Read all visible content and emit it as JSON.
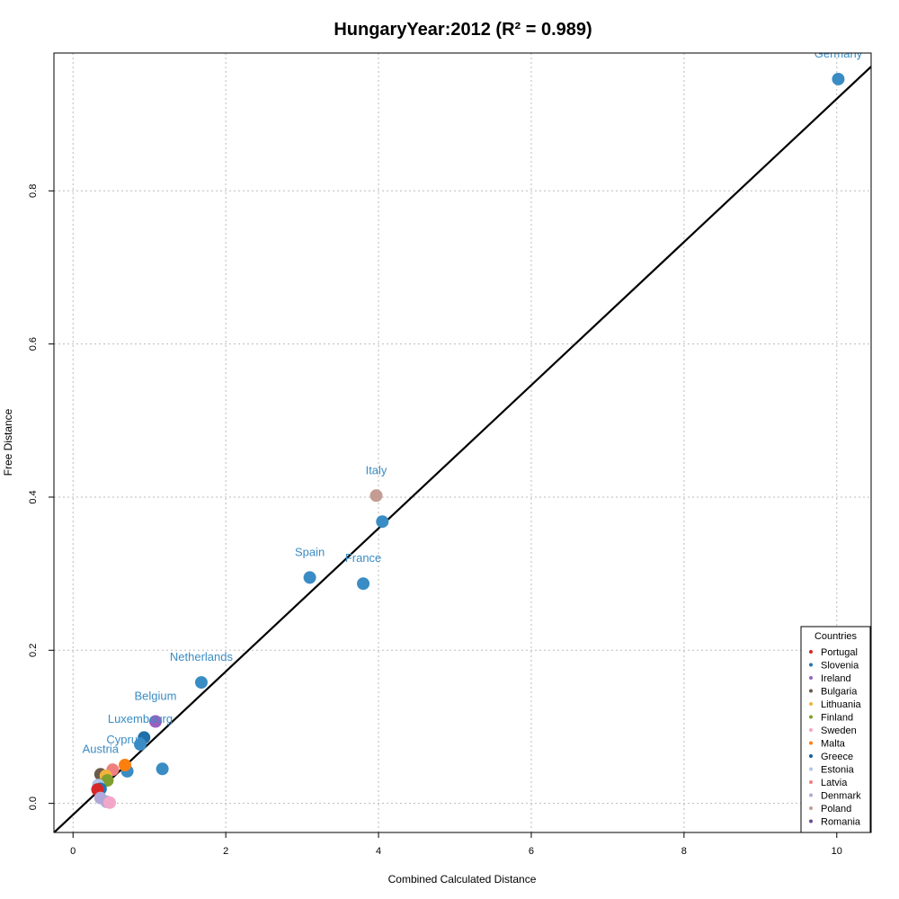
{
  "chart_data": {
    "type": "scatter",
    "title": "HungaryYear:2012 (R² = 0.989)",
    "xlabel": "Combined Calculated Distance",
    "ylabel": "Free Distance",
    "xlim": [
      -0.25,
      10.45
    ],
    "ylim": [
      -0.038,
      0.98
    ],
    "x_ticks": [
      0,
      2,
      4,
      6,
      8,
      10
    ],
    "y_ticks": [
      0.0,
      0.2,
      0.4,
      0.6,
      0.8
    ],
    "x_tick_labels": [
      "0",
      "2",
      "4",
      "6",
      "8",
      "10"
    ],
    "y_tick_labels": [
      "0.0",
      "0.2",
      "0.4",
      "0.6",
      "0.8"
    ],
    "grid": true,
    "fit_line": {
      "slope": 0.0935,
      "intercept": -0.0148
    },
    "legend": {
      "title": "Countries",
      "placement": "bottom-right",
      "entries": [
        {
          "name": "Portugal",
          "color": "#d62728"
        },
        {
          "name": "Slovenia",
          "color": "#1f77b4"
        },
        {
          "name": "Ireland",
          "color": "#9467bd"
        },
        {
          "name": "Bulgaria",
          "color": "#6b5b4b"
        },
        {
          "name": "Lithuania",
          "color": "#f2b33d"
        },
        {
          "name": "Finland",
          "color": "#7f9f2f"
        },
        {
          "name": "Sweden",
          "color": "#f4a6c8"
        },
        {
          "name": "Malta",
          "color": "#ff7f0e"
        },
        {
          "name": "Greece",
          "color": "#1a5f96"
        },
        {
          "name": "Estonia",
          "color": "#aec7e8"
        },
        {
          "name": "Latvia",
          "color": "#f08080"
        },
        {
          "name": "Denmark",
          "color": "#b0a8d8"
        },
        {
          "name": "Poland",
          "color": "#c49c94"
        },
        {
          "name": "Romania",
          "color": "#6a4c93"
        }
      ]
    },
    "points": [
      {
        "x": 10.02,
        "y": 0.946,
        "color": "#3a8cc4",
        "label": "Germany"
      },
      {
        "x": 4.05,
        "y": 0.368,
        "color": "#3a8cc4",
        "label": ""
      },
      {
        "x": 3.97,
        "y": 0.402,
        "color": "#c49c94",
        "label": "Italy"
      },
      {
        "x": 3.1,
        "y": 0.295,
        "color": "#3a8cc4",
        "label": "Spain"
      },
      {
        "x": 3.8,
        "y": 0.287,
        "color": "#3a8cc4",
        "label": "France"
      },
      {
        "x": 1.68,
        "y": 0.158,
        "color": "#3a8cc4",
        "label": "Netherlands"
      },
      {
        "x": 1.08,
        "y": 0.107,
        "color": "#9b5fc0",
        "label": "Belgium"
      },
      {
        "x": 0.93,
        "y": 0.086,
        "color": "#1f6fa8",
        "label": ""
      },
      {
        "x": 0.88,
        "y": 0.077,
        "color": "#3a8cc4",
        "label": "Luxembourg"
      },
      {
        "x": 1.17,
        "y": 0.045,
        "color": "#3a8cc4",
        "label": ""
      },
      {
        "x": 0.71,
        "y": 0.042,
        "color": "#3a8cc4",
        "label": ""
      },
      {
        "x": 0.68,
        "y": 0.05,
        "color": "#ff7f0e",
        "label": "Cyprus"
      },
      {
        "x": 0.52,
        "y": 0.044,
        "color": "#f08080",
        "label": ""
      },
      {
        "x": 0.36,
        "y": 0.038,
        "color": "#6b5b4b",
        "label": "Austria"
      },
      {
        "x": 0.43,
        "y": 0.036,
        "color": "#f2b33d",
        "label": ""
      },
      {
        "x": 0.45,
        "y": 0.03,
        "color": "#7f9f2f",
        "label": ""
      },
      {
        "x": 0.33,
        "y": 0.024,
        "color": "#aec7e8",
        "label": ""
      },
      {
        "x": 0.36,
        "y": 0.019,
        "color": "#1f77b4",
        "label": ""
      },
      {
        "x": 0.32,
        "y": 0.018,
        "color": "#d62728",
        "label": ""
      },
      {
        "x": 0.36,
        "y": 0.007,
        "color": "#b0a8d8",
        "label": ""
      },
      {
        "x": 0.44,
        "y": 0.002,
        "color": "#b0a8d8",
        "label": ""
      },
      {
        "x": 0.48,
        "y": 0.001,
        "color": "#f4a6c8",
        "label": ""
      }
    ]
  }
}
